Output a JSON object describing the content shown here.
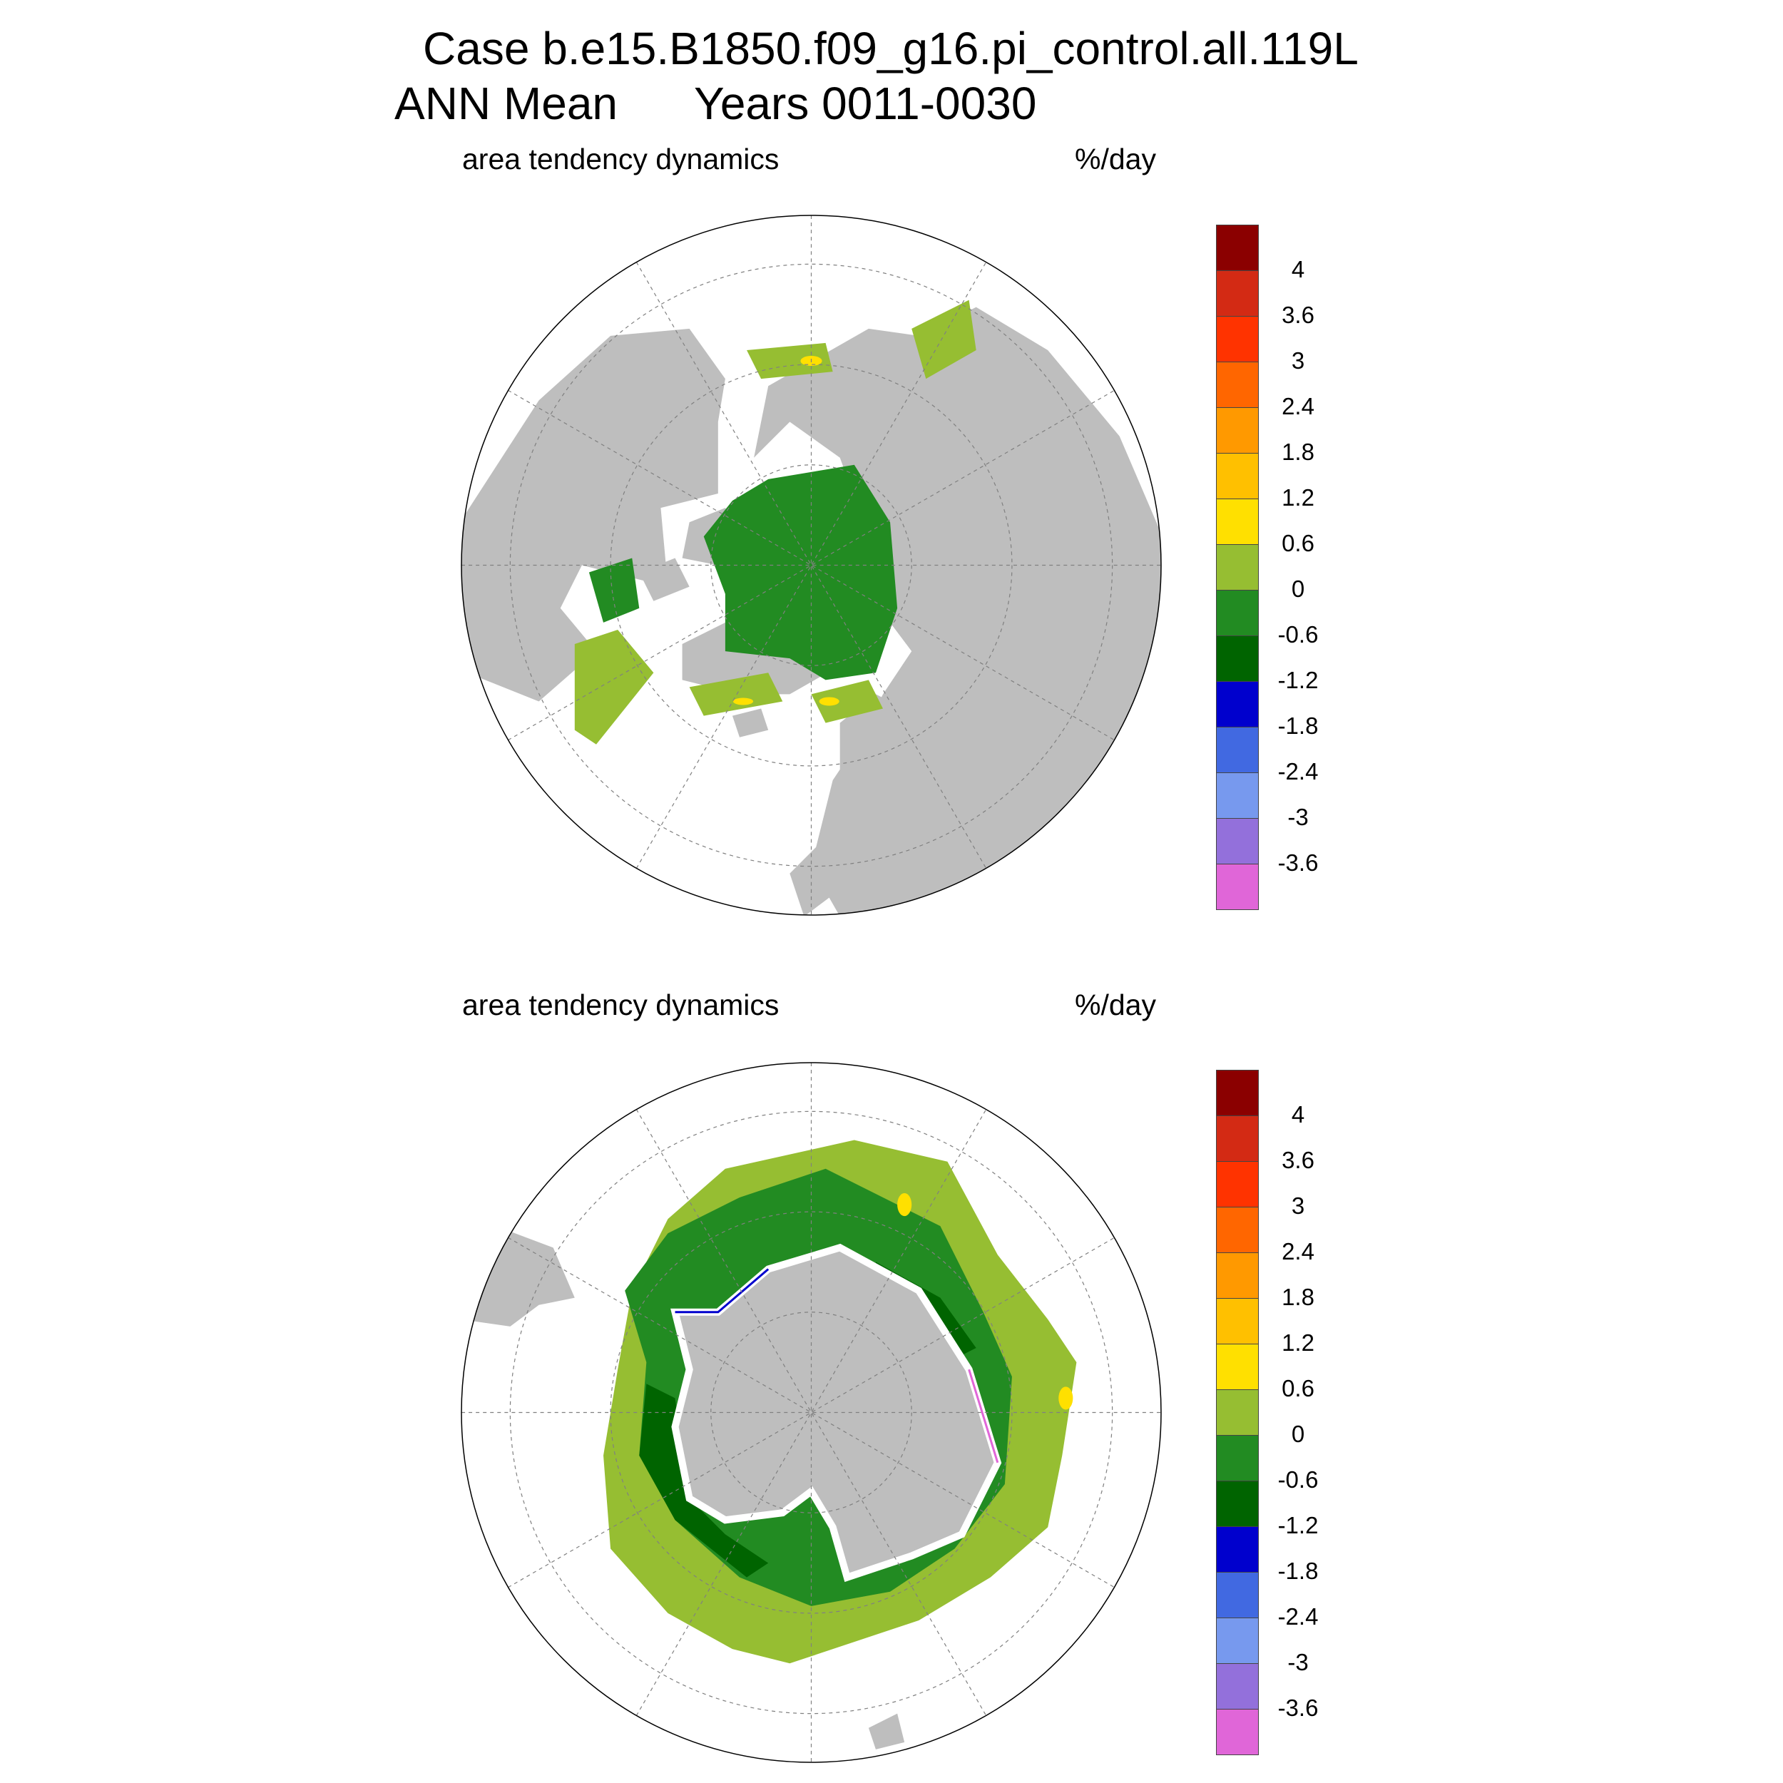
{
  "title": {
    "line1": "Case b.e15.B1850.f09_g16.pi_control.all.119L",
    "line2_left": "ANN Mean",
    "line2_right": "Years 0011-0030"
  },
  "panels": [
    {
      "id": "north",
      "variable": "area tendency dynamics",
      "units": "%/day"
    },
    {
      "id": "south",
      "variable": "area tendency dynamics",
      "units": "%/day"
    }
  ],
  "colorbar": {
    "colors": [
      "#8b0000",
      "#d32a14",
      "#ff3300",
      "#ff6600",
      "#ff9900",
      "#ffc000",
      "#ffe000",
      "#96be32",
      "#228b22",
      "#006400",
      "#0000cd",
      "#4169e1",
      "#7799ee",
      "#9370db",
      "#e066d8"
    ],
    "tick_labels": [
      "4",
      "3.6",
      "3",
      "2.4",
      "1.8",
      "1.2",
      "0.6",
      "0",
      "-0.6",
      "-1.2",
      "-1.8",
      "-2.4",
      "-3",
      "-3.6"
    ]
  },
  "map_colors": {
    "land": "#bebebe",
    "ocean": "#ffffff",
    "grid": "#808080"
  }
}
